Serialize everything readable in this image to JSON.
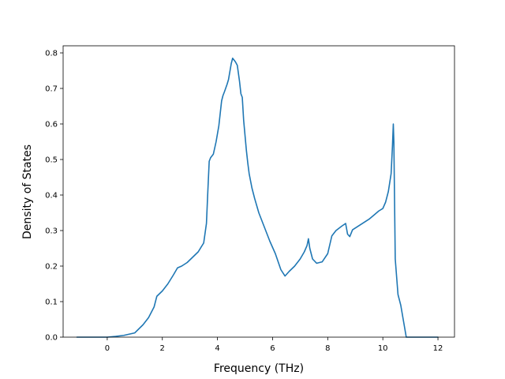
{
  "chart_data": {
    "type": "line",
    "xlabel": "Frequency (THz)",
    "ylabel": "Density of States",
    "xlim": [
      -1.6,
      12.6
    ],
    "ylim": [
      0,
      0.82
    ],
    "x_ticks": [
      0,
      2,
      4,
      6,
      8,
      10,
      12
    ],
    "y_ticks": [
      0.0,
      0.1,
      0.2,
      0.3,
      0.4,
      0.5,
      0.6,
      0.7,
      0.8
    ],
    "x_tick_labels": [
      "0",
      "2",
      "4",
      "6",
      "8",
      "10",
      "12"
    ],
    "y_tick_labels": [
      "0.0",
      "0.1",
      "0.2",
      "0.3",
      "0.4",
      "0.5",
      "0.6",
      "0.7",
      "0.8"
    ],
    "grid": false,
    "legend": "none",
    "series": [
      {
        "color": "#1f77b4",
        "x": [
          -1.1,
          0.0,
          0.3,
          0.6,
          1.0,
          1.3,
          1.5,
          1.7,
          1.8,
          2.0,
          2.2,
          2.4,
          2.55,
          2.7,
          2.9,
          3.1,
          3.3,
          3.5,
          3.6,
          3.65,
          3.7,
          3.75,
          3.85,
          3.95,
          4.05,
          4.15,
          4.2,
          4.25,
          4.35,
          4.4,
          4.5,
          4.55,
          4.65,
          4.72,
          4.8,
          4.85,
          4.9,
          4.95,
          5.05,
          5.1,
          5.15,
          5.2,
          5.25,
          5.35,
          5.5,
          5.7,
          5.9,
          6.1,
          6.3,
          6.45,
          6.6,
          6.8,
          7.0,
          7.15,
          7.25,
          7.3,
          7.35,
          7.45,
          7.6,
          7.8,
          8.0,
          8.15,
          8.3,
          8.5,
          8.65,
          8.72,
          8.8,
          8.9,
          9.1,
          9.3,
          9.5,
          9.7,
          9.85,
          10.0,
          10.1,
          10.2,
          10.3,
          10.35,
          10.38,
          10.4,
          10.45,
          10.55,
          10.65,
          10.75,
          10.85,
          11.0,
          12.0
        ],
        "y": [
          0.0,
          0.0,
          0.002,
          0.005,
          0.012,
          0.035,
          0.055,
          0.085,
          0.115,
          0.13,
          0.15,
          0.175,
          0.195,
          0.2,
          0.21,
          0.225,
          0.24,
          0.265,
          0.32,
          0.41,
          0.495,
          0.505,
          0.515,
          0.55,
          0.595,
          0.665,
          0.68,
          0.69,
          0.712,
          0.725,
          0.77,
          0.785,
          0.775,
          0.765,
          0.72,
          0.685,
          0.675,
          0.61,
          0.525,
          0.49,
          0.46,
          0.44,
          0.42,
          0.39,
          0.35,
          0.31,
          0.27,
          0.235,
          0.19,
          0.172,
          0.185,
          0.2,
          0.22,
          0.24,
          0.258,
          0.277,
          0.25,
          0.22,
          0.208,
          0.212,
          0.235,
          0.285,
          0.3,
          0.312,
          0.32,
          0.29,
          0.283,
          0.302,
          0.312,
          0.322,
          0.332,
          0.345,
          0.355,
          0.362,
          0.38,
          0.41,
          0.46,
          0.54,
          0.6,
          0.55,
          0.22,
          0.12,
          0.09,
          0.045,
          0.0,
          0.0,
          0.0
        ]
      }
    ]
  }
}
